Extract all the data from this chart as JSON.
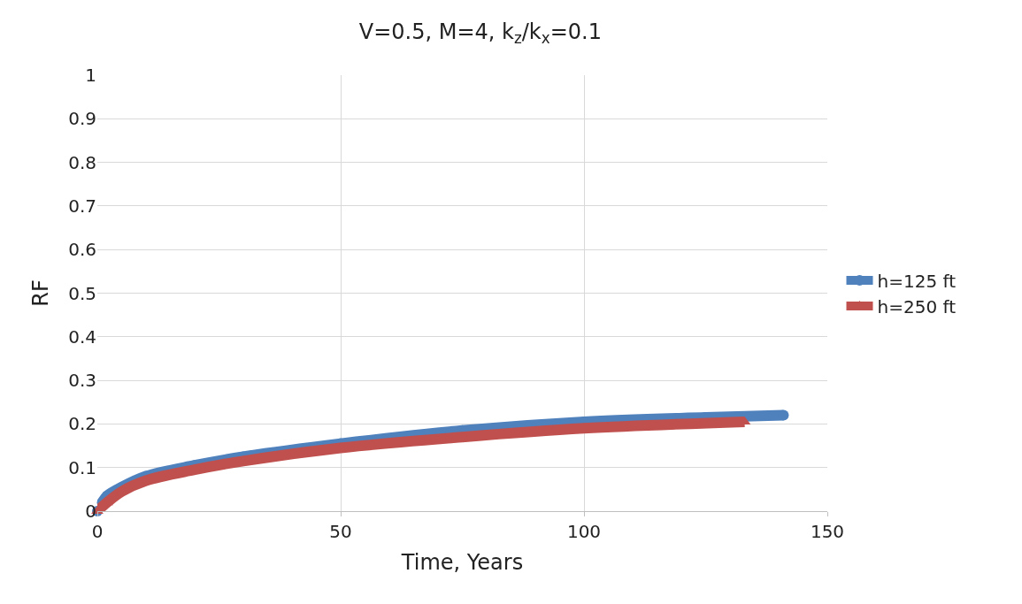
{
  "chart_data": {
    "type": "line",
    "title": "V=0.5, M=4, k$_{z}$/k$_{x}$=0.1",
    "xlabel": "Time, Years",
    "ylabel": "RF",
    "xlim": [
      0,
      150
    ],
    "xticks": [
      0,
      50,
      100,
      150
    ],
    "ylim": [
      0,
      1
    ],
    "yticks": [
      0,
      0.1,
      0.2,
      0.3,
      0.4,
      0.5,
      0.6,
      0.7,
      0.8,
      0.9,
      1
    ],
    "grid": true,
    "legend": "right",
    "series": [
      {
        "name": "h=125 ft",
        "color": "#4f81bd",
        "marker": "circle",
        "x": [
          0,
          1,
          2,
          5,
          10,
          20,
          30,
          50,
          75,
          100,
          125,
          141
        ],
        "values": [
          0,
          0.02,
          0.035,
          0.055,
          0.08,
          0.105,
          0.125,
          0.155,
          0.185,
          0.205,
          0.215,
          0.22
        ]
      },
      {
        "name": "h=250 ft",
        "color": "#c0504d",
        "marker": "triangle",
        "x": [
          0,
          2,
          5,
          10,
          20,
          30,
          50,
          75,
          100,
          133
        ],
        "values": [
          0,
          0.02,
          0.045,
          0.07,
          0.095,
          0.115,
          0.145,
          0.17,
          0.19,
          0.205
        ]
      }
    ]
  }
}
